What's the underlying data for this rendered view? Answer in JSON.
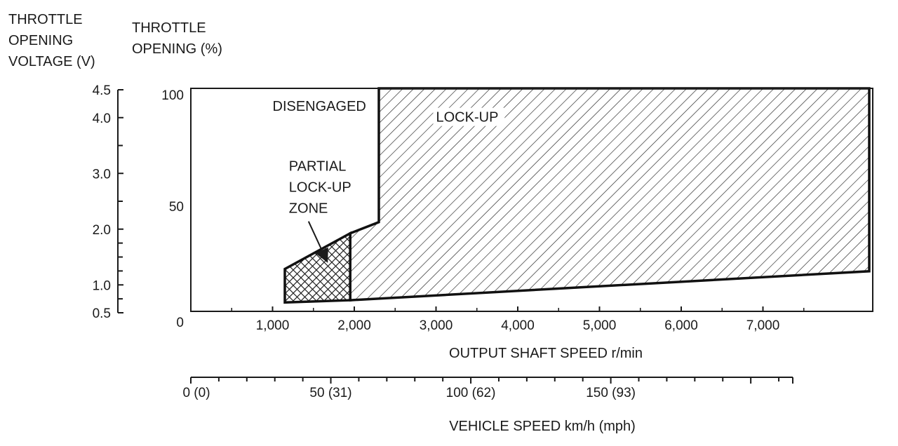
{
  "chart_data": {
    "type": "area",
    "y_left_title": [
      "THROTTLE",
      "OPENING",
      "VOLTAGE (V)"
    ],
    "y_right_title": [
      "THROTTLE",
      "OPENING (%)"
    ],
    "xlabel": "OUTPUT SHAFT SPEED r/min",
    "x2label": "VEHICLE SPEED km/h (mph)",
    "xlim": [
      0,
      8300
    ],
    "ylim": [
      0,
      100
    ],
    "voltage_range": [
      0.5,
      4.5
    ],
    "x_ticks": [
      {
        "value": 0,
        "label": "0"
      },
      {
        "value": 1000,
        "label": "1,000"
      },
      {
        "value": 2000,
        "label": "2,000"
      },
      {
        "value": 3000,
        "label": "3,000"
      },
      {
        "value": 4000,
        "label": "4,000"
      },
      {
        "value": 5000,
        "label": "5,000"
      },
      {
        "value": 6000,
        "label": "6,000"
      },
      {
        "value": 7000,
        "label": "7,000"
      }
    ],
    "y_ticks_percent": [
      {
        "value": 0,
        "label": "0"
      },
      {
        "value": 50,
        "label": "50"
      },
      {
        "value": 100,
        "label": "100"
      }
    ],
    "y_ticks_voltage": [
      {
        "value": 0.5,
        "label": "0.5"
      },
      {
        "value": 1.0,
        "label": "1.0"
      },
      {
        "value": 2.0,
        "label": "2.0"
      },
      {
        "value": 3.0,
        "label": "3.0"
      },
      {
        "value": 4.0,
        "label": "4.0"
      },
      {
        "value": 4.5,
        "label": "4.5"
      }
    ],
    "vehicle_speed_ticks": [
      {
        "value": 0,
        "label": "0 (0)"
      },
      {
        "value": 50,
        "label": "50 (31)"
      },
      {
        "value": 100,
        "label": "100 (62)"
      },
      {
        "value": 150,
        "label": "150 (93)"
      }
    ],
    "vehicle_speed_range": [
      0,
      215
    ],
    "regions": [
      {
        "name": "LOCK-UP",
        "pattern": "diagonal-hatch",
        "points": [
          [
            1950,
            5
          ],
          [
            1950,
            35
          ],
          [
            2300,
            40
          ],
          [
            2300,
            100
          ],
          [
            8300,
            100
          ],
          [
            8300,
            18
          ],
          [
            1950,
            5
          ]
        ]
      },
      {
        "name": "PARTIAL LOCK-UP ZONE",
        "pattern": "cross-hatch",
        "points": [
          [
            1150,
            4
          ],
          [
            1150,
            19
          ],
          [
            1950,
            35
          ],
          [
            1950,
            5
          ],
          [
            1150,
            4
          ]
        ]
      }
    ],
    "annotations": [
      {
        "text": "DISENGAGED",
        "x": 1000,
        "y": 90
      },
      {
        "text": "LOCK-UP",
        "x": 3000,
        "y": 85
      },
      {
        "lines": [
          "PARTIAL",
          "LOCK-UP",
          "ZONE"
        ],
        "x": 1200,
        "y": 63
      }
    ],
    "grid": false,
    "legend": "none"
  }
}
